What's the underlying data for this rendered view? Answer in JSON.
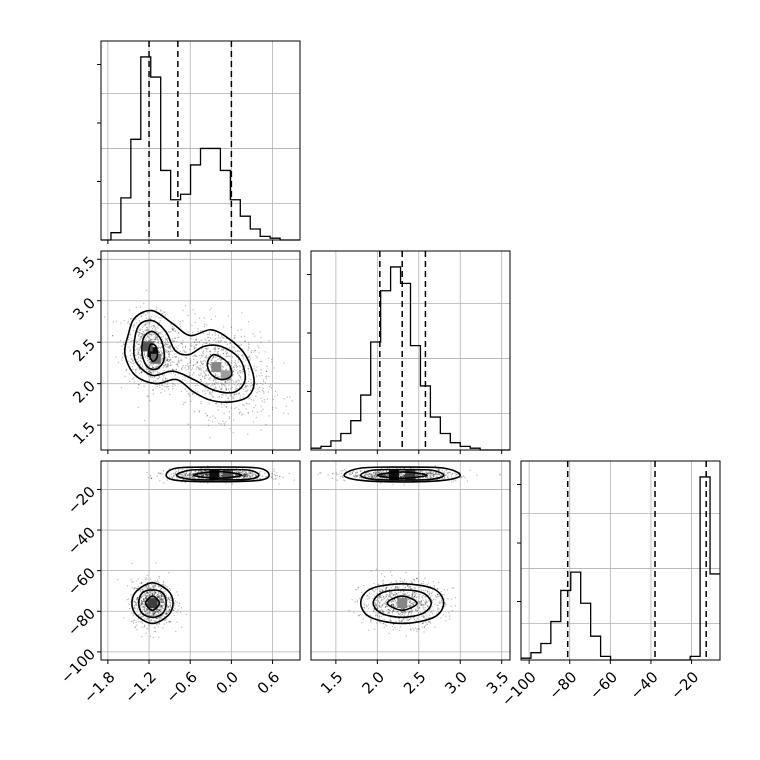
{
  "chart_data": {
    "type": "corner",
    "title": "",
    "parameters": [
      {
        "index": 0,
        "range": [
          -1.9,
          1.0
        ],
        "ticks": [
          -1.8,
          -1.2,
          -0.6,
          0.0,
          0.6
        ],
        "tick_labels": [
          "−1.8",
          "−1.2",
          "−0.6",
          "0.0",
          "0.6"
        ],
        "quantiles": [
          -1.2,
          -0.78,
          0.0
        ],
        "histogram": {
          "edges": [
            -1.9,
            -1.755,
            -1.61,
            -1.465,
            -1.32,
            -1.175,
            -1.03,
            -0.885,
            -0.74,
            -0.595,
            -0.45,
            -0.305,
            -0.16,
            -0.015,
            0.13,
            0.275,
            0.42,
            0.565,
            0.71,
            0.855,
            1.0
          ],
          "counts": [
            0,
            0.04,
            0.23,
            0.55,
            1.0,
            0.89,
            0.38,
            0.22,
            0.25,
            0.41,
            0.5,
            0.5,
            0.38,
            0.22,
            0.13,
            0.06,
            0.02,
            0.01,
            0,
            0
          ]
        }
      },
      {
        "index": 1,
        "range": [
          1.2,
          3.6
        ],
        "ticks": [
          1.5,
          2.0,
          2.5,
          3.0,
          3.5
        ],
        "tick_labels": [
          "1.5",
          "2.0",
          "2.5",
          "3.0",
          "3.5"
        ],
        "quantiles": [
          2.03,
          2.3,
          2.58
        ],
        "histogram": {
          "edges": [
            1.2,
            1.32,
            1.44,
            1.56,
            1.68,
            1.8,
            1.92,
            2.04,
            2.16,
            2.28,
            2.4,
            2.52,
            2.64,
            2.76,
            2.88,
            3.0,
            3.12,
            3.24,
            3.36,
            3.48,
            3.6
          ],
          "counts": [
            0.01,
            0.02,
            0.05,
            0.09,
            0.16,
            0.3,
            0.59,
            0.87,
            1.0,
            0.91,
            0.57,
            0.35,
            0.18,
            0.09,
            0.04,
            0.02,
            0.01,
            0,
            0,
            0
          ]
        }
      },
      {
        "index": 2,
        "range": [
          -104,
          -6
        ],
        "ticks": [
          -100,
          -80,
          -60,
          -40,
          -20
        ],
        "tick_labels": [
          "−100",
          "−80",
          "−60",
          "−40",
          "−20"
        ],
        "quantiles": [
          -81.0,
          -38.0,
          -12.8
        ],
        "histogram": {
          "edges": [
            -104,
            -99.1,
            -94.2,
            -89.3,
            -84.4,
            -79.5,
            -74.6,
            -69.7,
            -64.8,
            -59.9,
            -55,
            -50.1,
            -45.2,
            -40.3,
            -35.4,
            -30.5,
            -25.6,
            -20.7,
            -15.8,
            -10.9,
            -6
          ],
          "counts": [
            0.01,
            0.04,
            0.09,
            0.21,
            0.38,
            0.48,
            0.31,
            0.13,
            0.02,
            0,
            0,
            0,
            0,
            0,
            0,
            0,
            0,
            0.02,
            1.0,
            0.47
          ]
        }
      }
    ],
    "pairs": [
      {
        "x_param": 0,
        "y_param": 1,
        "clusters": [
          {
            "weight": 0.48,
            "mx": -1.15,
            "my": 2.4,
            "sx": 0.2,
            "sy": 0.22,
            "rho": -0.2
          },
          {
            "weight": 0.52,
            "mx": -0.15,
            "my": 2.15,
            "sx": 0.35,
            "sy": 0.28,
            "rho": -0.3
          }
        ],
        "peak_cells": [
          {
            "x": -1.15,
            "y": 2.38,
            "level": 1.0
          },
          {
            "x": -1.22,
            "y": 2.45,
            "level": 0.7
          },
          {
            "x": -1.1,
            "y": 2.3,
            "level": 0.6
          },
          {
            "x": -0.22,
            "y": 2.2,
            "level": 0.5
          },
          {
            "x": -0.08,
            "y": 2.1,
            "level": 0.4
          }
        ],
        "contours": [
          {
            "level": "outer",
            "points": [
              [
                -1.5,
                2.6
              ],
              [
                -1.4,
                2.8
              ],
              [
                -1.15,
                2.88
              ],
              [
                -0.85,
                2.72
              ],
              [
                -0.6,
                2.58
              ],
              [
                -0.3,
                2.65
              ],
              [
                -0.05,
                2.55
              ],
              [
                0.2,
                2.35
              ],
              [
                0.33,
                2.05
              ],
              [
                0.25,
                1.85
              ],
              [
                0.0,
                1.78
              ],
              [
                -0.3,
                1.8
              ],
              [
                -0.55,
                1.9
              ],
              [
                -0.8,
                2.05
              ],
              [
                -1.1,
                2.0
              ],
              [
                -1.4,
                2.1
              ],
              [
                -1.55,
                2.35
              ]
            ]
          },
          {
            "level": "middle",
            "points": [
              [
                -1.42,
                2.45
              ],
              [
                -1.35,
                2.7
              ],
              [
                -1.15,
                2.76
              ],
              [
                -0.95,
                2.62
              ],
              [
                -0.82,
                2.4
              ],
              [
                -0.62,
                2.35
              ],
              [
                -0.4,
                2.45
              ],
              [
                -0.15,
                2.45
              ],
              [
                0.12,
                2.3
              ],
              [
                0.2,
                2.05
              ],
              [
                0.05,
                1.9
              ],
              [
                -0.25,
                1.92
              ],
              [
                -0.55,
                2.05
              ],
              [
                -0.85,
                2.15
              ],
              [
                -1.15,
                2.1
              ],
              [
                -1.38,
                2.25
              ]
            ]
          },
          {
            "level": "inner",
            "points": [
              [
                -1.3,
                2.35
              ],
              [
                -1.28,
                2.55
              ],
              [
                -1.15,
                2.63
              ],
              [
                -1.02,
                2.52
              ],
              [
                -0.98,
                2.3
              ],
              [
                -1.08,
                2.18
              ],
              [
                -1.22,
                2.2
              ]
            ]
          },
          {
            "level": "core",
            "points": [
              [
                -1.2,
                2.35
              ],
              [
                -1.18,
                2.47
              ],
              [
                -1.1,
                2.45
              ],
              [
                -1.08,
                2.33
              ],
              [
                -1.14,
                2.27
              ]
            ]
          },
          {
            "level": "inner2",
            "points": [
              [
                -0.35,
                2.25
              ],
              [
                -0.25,
                2.35
              ],
              [
                -0.05,
                2.25
              ],
              [
                0.0,
                2.1
              ],
              [
                -0.15,
                2.05
              ],
              [
                -0.3,
                2.12
              ]
            ]
          }
        ]
      },
      {
        "x_param": 0,
        "y_param": 2,
        "clusters": [
          {
            "weight": 0.5,
            "mx": -1.15,
            "my": -76,
            "sx": 0.15,
            "sy": 5.5,
            "rho": 0
          },
          {
            "weight": 0.5,
            "mx": -0.2,
            "my": -13,
            "sx": 0.35,
            "sy": 1.4,
            "rho": 0
          }
        ],
        "peak_cells": [
          {
            "x": -1.15,
            "y": -76,
            "level": 0.8
          },
          {
            "x": -0.25,
            "y": -13,
            "level": 1.0
          },
          {
            "x": -0.05,
            "y": -13,
            "level": 0.7
          }
        ],
        "contours": [
          {
            "level": "outer",
            "points": [
              [
                -1.45,
                -76
              ],
              [
                -1.38,
                -70
              ],
              [
                -1.15,
                -66
              ],
              [
                -0.92,
                -70
              ],
              [
                -0.85,
                -76
              ],
              [
                -0.92,
                -82
              ],
              [
                -1.15,
                -86
              ],
              [
                -1.38,
                -82
              ]
            ]
          },
          {
            "level": "middle",
            "points": [
              [
                -1.35,
                -76
              ],
              [
                -1.3,
                -71
              ],
              [
                -1.15,
                -69.5
              ],
              [
                -1.0,
                -71
              ],
              [
                -0.95,
                -76
              ],
              [
                -1.0,
                -81
              ],
              [
                -1.15,
                -83
              ],
              [
                -1.3,
                -81
              ]
            ]
          },
          {
            "level": "inner",
            "points": [
              [
                -1.25,
                -76
              ],
              [
                -1.15,
                -72.5
              ],
              [
                -1.05,
                -76
              ],
              [
                -1.15,
                -79.5
              ]
            ]
          },
          {
            "level": "outer",
            "points": [
              [
                -0.95,
                -13
              ],
              [
                -0.8,
                -9.5
              ],
              [
                -0.2,
                -9
              ],
              [
                0.4,
                -9.5
              ],
              [
                0.55,
                -13
              ],
              [
                0.4,
                -15.5
              ],
              [
                -0.2,
                -16.2
              ],
              [
                -0.8,
                -15.5
              ]
            ]
          },
          {
            "level": "middle",
            "points": [
              [
                -0.8,
                -13
              ],
              [
                -0.6,
                -10.5
              ],
              [
                -0.2,
                -10.3
              ],
              [
                0.25,
                -10.5
              ],
              [
                0.4,
                -13
              ],
              [
                0.25,
                -15
              ],
              [
                -0.2,
                -15.3
              ],
              [
                -0.6,
                -15
              ]
            ]
          },
          {
            "level": "inner",
            "points": [
              [
                -0.55,
                -13
              ],
              [
                -0.2,
                -11.2
              ],
              [
                0.15,
                -13
              ],
              [
                -0.2,
                -14.5
              ]
            ]
          }
        ]
      },
      {
        "x_param": 1,
        "y_param": 2,
        "clusters": [
          {
            "weight": 0.5,
            "mx": 2.3,
            "my": -76,
            "sx": 0.25,
            "sy": 5.5,
            "rho": 0
          },
          {
            "weight": 0.5,
            "mx": 2.3,
            "my": -13,
            "sx": 0.33,
            "sy": 1.4,
            "rho": 0
          }
        ],
        "peak_cells": [
          {
            "x": 2.3,
            "y": -76,
            "level": 0.5
          },
          {
            "x": 2.2,
            "y": -13,
            "level": 1.0
          },
          {
            "x": 2.4,
            "y": -13,
            "level": 0.8
          }
        ],
        "contours": [
          {
            "level": "outer",
            "points": [
              [
                1.8,
                -76
              ],
              [
                1.92,
                -69
              ],
              [
                2.3,
                -66.5
              ],
              [
                2.68,
                -69
              ],
              [
                2.8,
                -76
              ],
              [
                2.68,
                -83
              ],
              [
                2.3,
                -86
              ],
              [
                1.92,
                -83
              ]
            ]
          },
          {
            "level": "middle",
            "points": [
              [
                1.95,
                -76
              ],
              [
                2.05,
                -71
              ],
              [
                2.3,
                -69.5
              ],
              [
                2.55,
                -71
              ],
              [
                2.65,
                -76
              ],
              [
                2.55,
                -81
              ],
              [
                2.3,
                -83
              ],
              [
                2.05,
                -81
              ]
            ]
          },
          {
            "level": "inner",
            "points": [
              [
                2.12,
                -76
              ],
              [
                2.3,
                -72.5
              ],
              [
                2.48,
                -76
              ],
              [
                2.3,
                -79.5
              ]
            ]
          },
          {
            "level": "outer",
            "points": [
              [
                1.6,
                -13
              ],
              [
                1.8,
                -9.5
              ],
              [
                2.3,
                -9
              ],
              [
                2.8,
                -9.5
              ],
              [
                3.0,
                -13
              ],
              [
                2.8,
                -15.5
              ],
              [
                2.3,
                -16.3
              ],
              [
                1.8,
                -15.5
              ]
            ]
          },
          {
            "level": "middle",
            "points": [
              [
                1.8,
                -13
              ],
              [
                1.95,
                -10.5
              ],
              [
                2.3,
                -10.3
              ],
              [
                2.65,
                -10.5
              ],
              [
                2.8,
                -13
              ],
              [
                2.65,
                -15
              ],
              [
                2.3,
                -15.4
              ],
              [
                1.95,
                -15
              ]
            ]
          },
          {
            "level": "inner",
            "points": [
              [
                2.0,
                -13
              ],
              [
                2.3,
                -11.4
              ],
              [
                2.6,
                -13
              ],
              [
                2.3,
                -14.5
              ]
            ]
          }
        ]
      }
    ]
  }
}
